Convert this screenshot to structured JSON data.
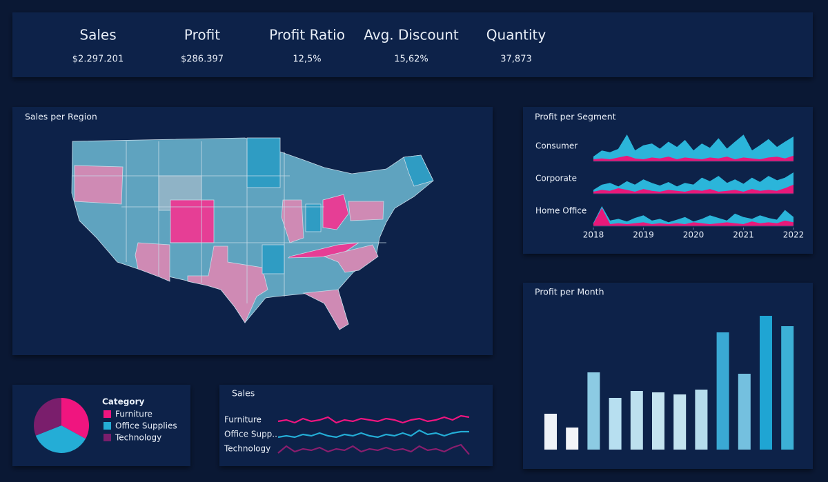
{
  "kpis": [
    {
      "label": "Sales",
      "value": "$2.297.201"
    },
    {
      "label": "Profit",
      "value": "$286.397"
    },
    {
      "label": "Profit Ratio",
      "value": "12,5%"
    },
    {
      "label": "Avg. Discount",
      "value": "15,62%"
    },
    {
      "label": "Quantity",
      "value": "37,873"
    }
  ],
  "chart_data": [
    {
      "type": "map",
      "title": "Sales per Region"
    },
    {
      "type": "area",
      "title": "Profit per Segment",
      "x": [
        2018,
        2018.17,
        2018.33,
        2018.5,
        2018.67,
        2018.83,
        2019,
        2019.17,
        2019.33,
        2019.5,
        2019.67,
        2019.83,
        2020,
        2020.17,
        2020.33,
        2020.5,
        2020.67,
        2020.83,
        2021,
        2021.17,
        2021.33,
        2021.5,
        2021.67,
        2021.83,
        2022
      ],
      "xlim": [
        2018,
        2022
      ],
      "xticks": [
        2018,
        2019,
        2020,
        2021,
        2022
      ],
      "panels": [
        {
          "name": "Consumer",
          "series": [
            {
              "color": "#2bb5da",
              "values": [
                5,
                12,
                10,
                14,
                30,
                12,
                18,
                20,
                14,
                22,
                16,
                24,
                12,
                20,
                15,
                26,
                14,
                22,
                30,
                12,
                18,
                25,
                16,
                22,
                28
              ]
            },
            {
              "color": "#e8197a",
              "values": [
                2,
                3,
                2,
                4,
                6,
                3,
                2,
                4,
                3,
                5,
                2,
                4,
                3,
                2,
                4,
                3,
                5,
                2,
                4,
                3,
                2,
                4,
                5,
                3,
                6
              ]
            }
          ]
        },
        {
          "name": "Corporate",
          "series": [
            {
              "color": "#2bb5da",
              "values": [
                4,
                10,
                12,
                8,
                14,
                10,
                16,
                12,
                9,
                13,
                8,
                12,
                10,
                18,
                14,
                20,
                12,
                16,
                11,
                18,
                13,
                20,
                15,
                18,
                24
              ]
            },
            {
              "color": "#e8197a",
              "values": [
                2,
                4,
                3,
                6,
                4,
                2,
                5,
                3,
                2,
                4,
                3,
                2,
                4,
                3,
                5,
                2,
                3,
                4,
                2,
                5,
                3,
                4,
                3,
                6,
                10
              ]
            }
          ]
        },
        {
          "name": "Home Office",
          "series": [
            {
              "color": "#2bb5da",
              "values": [
                3,
                22,
                6,
                8,
                5,
                9,
                12,
                6,
                8,
                4,
                7,
                10,
                5,
                8,
                12,
                9,
                6,
                14,
                10,
                8,
                12,
                9,
                7,
                18,
                10
              ]
            },
            {
              "color": "#e8197a",
              "values": [
                2,
                20,
                2,
                3,
                2,
                3,
                4,
                2,
                3,
                2,
                3,
                2,
                4,
                3,
                2,
                3,
                4,
                3,
                2,
                5,
                3,
                4,
                3,
                6,
                4
              ]
            }
          ]
        }
      ]
    },
    {
      "type": "bar",
      "title": "Profit per Month",
      "categories": [
        null,
        null,
        null,
        null,
        null,
        null,
        null,
        null,
        null,
        null,
        null,
        null
      ],
      "values": [
        52,
        32,
        112,
        75,
        85,
        83,
        80,
        87,
        170,
        110,
        194,
        179
      ],
      "colors": [
        "#eef2f7",
        "#f3f5f8",
        "#8ccbe3",
        "#b7dff0",
        "#bde0ee",
        "#c4e3ef",
        "#c3e3ef",
        "#b5dcec",
        "#3aa9d4",
        "#74c0df",
        "#1fa5d3",
        "#3cb0d6"
      ]
    },
    {
      "type": "pie",
      "legend_title": "Category",
      "categories": [
        "Furniture",
        "Office Supplies",
        "Technology"
      ],
      "values": [
        33,
        36,
        31
      ],
      "colors": [
        "#f0157f",
        "#24add6",
        "#7a1e6c"
      ]
    },
    {
      "type": "line",
      "title": "Sales",
      "series": [
        {
          "name": "Furniture",
          "color": "#f0157f",
          "values": [
            14,
            15,
            13,
            16,
            14,
            15,
            17,
            13,
            15,
            14,
            16,
            15,
            14,
            16,
            15,
            13,
            15,
            16,
            14,
            15,
            17,
            15,
            18,
            17
          ]
        },
        {
          "name": "Office Supp..",
          "color": "#24add6",
          "values": [
            13,
            14,
            13,
            15,
            14,
            16,
            14,
            13,
            15,
            14,
            16,
            14,
            13,
            15,
            14,
            16,
            14,
            18,
            15,
            16,
            14,
            16,
            17,
            17
          ]
        },
        {
          "name": "Technology",
          "color": "#8a1e6e",
          "values": [
            12,
            17,
            13,
            15,
            14,
            16,
            13,
            15,
            14,
            17,
            13,
            15,
            14,
            16,
            14,
            15,
            13,
            17,
            14,
            15,
            13,
            16,
            18,
            11
          ]
        }
      ]
    }
  ]
}
